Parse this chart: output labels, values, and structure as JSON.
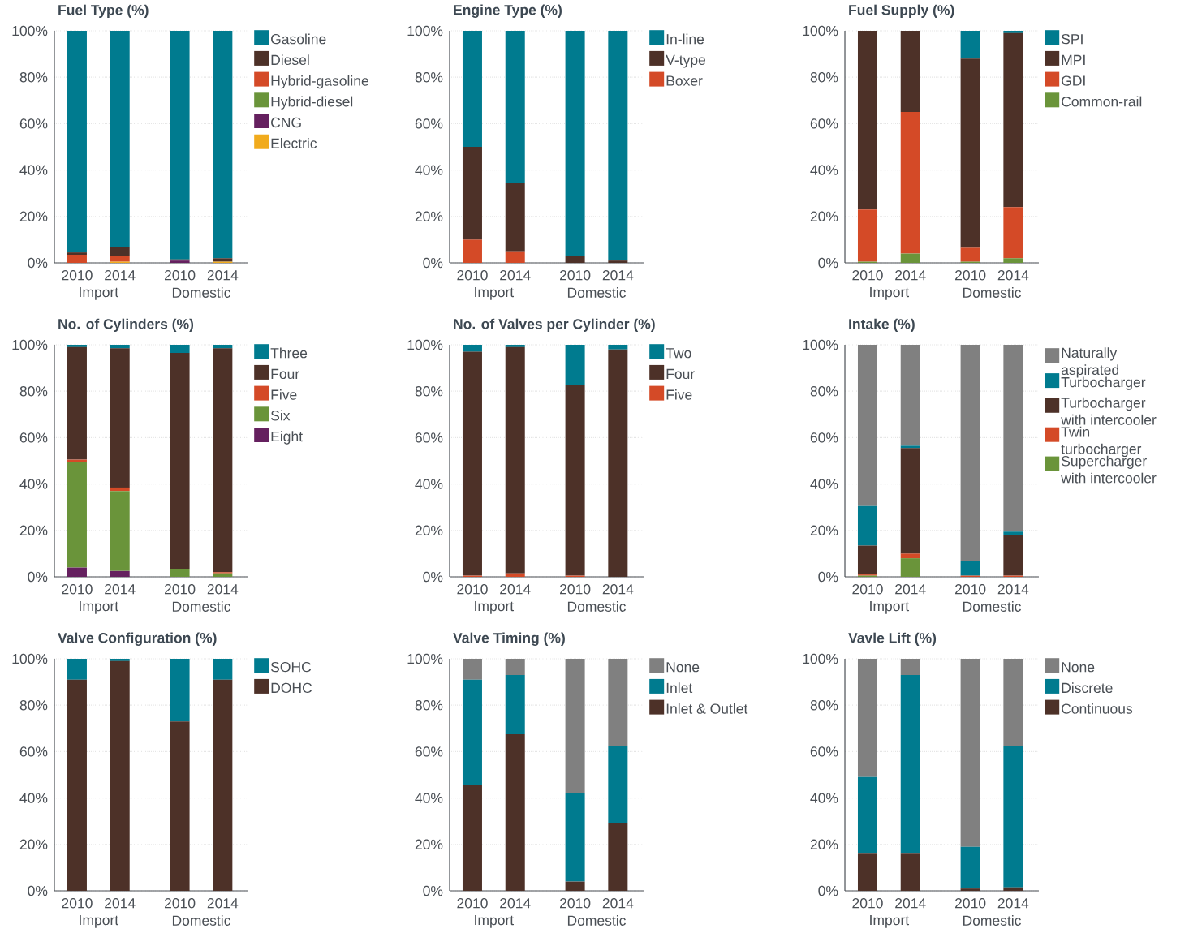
{
  "chart_data": [
    {
      "type": "bar",
      "stacked": true,
      "title": "Fuel Type (%)",
      "categories": [
        "2010",
        "2014",
        "2010",
        "2014"
      ],
      "annotations": [
        "Import",
        "Domestic"
      ],
      "ylim": [
        0,
        100
      ],
      "yticks": [
        {
          "value": 0,
          "label": "0%"
        },
        {
          "value": 20,
          "label": "20%"
        },
        {
          "value": 40,
          "label": "40%"
        },
        {
          "value": 60,
          "label": "60%"
        },
        {
          "value": 80,
          "label": "80%"
        },
        {
          "value": 100,
          "label": "100%"
        }
      ],
      "grid": "y",
      "legend": "right",
      "series": [
        {
          "name": "Electric",
          "color": "#f1ab1d",
          "values": [
            0,
            0.5,
            0,
            0.5
          ]
        },
        {
          "name": "CNG",
          "color": "#65205f",
          "values": [
            0,
            0,
            1,
            0
          ]
        },
        {
          "name": "Hybrid-diesel",
          "color": "#6a943a",
          "values": [
            0,
            0,
            0,
            0
          ]
        },
        {
          "name": "Hybrid-gasoline",
          "color": "#d44a27",
          "values": [
            3.5,
            2.5,
            0,
            0
          ]
        },
        {
          "name": "Diesel",
          "color": "#4d3128",
          "values": [
            1,
            4,
            0.5,
            1.5
          ]
        },
        {
          "name": "Gasoline",
          "color": "#007b8f",
          "values": [
            95.5,
            93,
            98.5,
            98
          ]
        }
      ]
    },
    {
      "type": "bar",
      "stacked": true,
      "title": "Engine Type (%)",
      "categories": [
        "2010",
        "2014",
        "2010",
        "2014"
      ],
      "annotations": [
        "Import",
        "Domestic"
      ],
      "ylim": [
        0,
        100
      ],
      "yticks": [
        {
          "value": 0,
          "label": "0%"
        },
        {
          "value": 20,
          "label": "20%"
        },
        {
          "value": 40,
          "label": "40%"
        },
        {
          "value": 60,
          "label": "60%"
        },
        {
          "value": 80,
          "label": "80%"
        },
        {
          "value": 100,
          "label": "100%"
        }
      ],
      "grid": "y",
      "legend": "right",
      "series": [
        {
          "name": "Boxer",
          "color": "#d44a27",
          "values": [
            10,
            5,
            0,
            0
          ]
        },
        {
          "name": "V-type",
          "color": "#4d3128",
          "values": [
            40,
            29.5,
            3,
            1
          ]
        },
        {
          "name": "In-line",
          "color": "#007b8f",
          "values": [
            50,
            65.5,
            97,
            99
          ]
        }
      ]
    },
    {
      "type": "bar",
      "stacked": true,
      "title": "Fuel Supply (%)",
      "categories": [
        "2010",
        "2014",
        "2010",
        "2014"
      ],
      "annotations": [
        "Import",
        "Domestic"
      ],
      "ylim": [
        0,
        100
      ],
      "yticks": [
        {
          "value": 0,
          "label": "0%"
        },
        {
          "value": 20,
          "label": "20%"
        },
        {
          "value": 40,
          "label": "40%"
        },
        {
          "value": 60,
          "label": "60%"
        },
        {
          "value": 80,
          "label": "80%"
        },
        {
          "value": 100,
          "label": "100%"
        }
      ],
      "grid": "y",
      "legend": "right",
      "series": [
        {
          "name": "Common-rail",
          "color": "#6a943a",
          "values": [
            0.5,
            4,
            0.5,
            2
          ]
        },
        {
          "name": "GDI",
          "color": "#d44a27",
          "values": [
            22.5,
            61,
            6,
            22
          ]
        },
        {
          "name": "MPI",
          "color": "#4d3128",
          "values": [
            77,
            35,
            81.5,
            75
          ]
        },
        {
          "name": "SPI",
          "color": "#007b8f",
          "values": [
            0,
            0,
            12,
            1
          ]
        }
      ]
    },
    {
      "type": "bar",
      "stacked": true,
      "title": "No. of Cylinders (%)",
      "categories": [
        "2010",
        "2014",
        "2010",
        "2014"
      ],
      "annotations": [
        "Import",
        "Domestic"
      ],
      "ylim": [
        0,
        100
      ],
      "yticks": [
        {
          "value": 0,
          "label": "0%"
        },
        {
          "value": 20,
          "label": "20%"
        },
        {
          "value": 40,
          "label": "40%"
        },
        {
          "value": 60,
          "label": "60%"
        },
        {
          "value": 80,
          "label": "80%"
        },
        {
          "value": 100,
          "label": "100%"
        }
      ],
      "grid": "y",
      "legend": "right",
      "series": [
        {
          "name": "Eight",
          "color": "#65205f",
          "values": [
            4,
            2.5,
            0,
            0
          ]
        },
        {
          "name": "Six",
          "color": "#6a943a",
          "values": [
            45.5,
            34.5,
            3.5,
            1.5
          ]
        },
        {
          "name": "Five",
          "color": "#d44a27",
          "values": [
            1,
            1.5,
            0,
            0.5
          ]
        },
        {
          "name": "Four",
          "color": "#4d3128",
          "values": [
            48.5,
            60,
            93,
            96.5
          ]
        },
        {
          "name": "Three",
          "color": "#007b8f",
          "values": [
            1,
            1.5,
            3.5,
            1.5
          ]
        }
      ]
    },
    {
      "type": "bar",
      "stacked": true,
      "title": "No. of Valves per Cylinder (%)",
      "categories": [
        "2010",
        "2014",
        "2010",
        "2014"
      ],
      "annotations": [
        "Import",
        "Domestic"
      ],
      "ylim": [
        0,
        100
      ],
      "yticks": [
        {
          "value": 0,
          "label": "0%"
        },
        {
          "value": 20,
          "label": "20%"
        },
        {
          "value": 40,
          "label": "40%"
        },
        {
          "value": 60,
          "label": "60%"
        },
        {
          "value": 80,
          "label": "80%"
        },
        {
          "value": 100,
          "label": "100%"
        }
      ],
      "grid": "y",
      "legend": "right",
      "series": [
        {
          "name": "Five",
          "color": "#d44a27",
          "values": [
            0.5,
            1.5,
            0.5,
            0
          ]
        },
        {
          "name": "Four",
          "color": "#4d3128",
          "values": [
            96.5,
            97.5,
            82,
            98
          ]
        },
        {
          "name": "Two",
          "color": "#007b8f",
          "values": [
            3,
            1,
            17.5,
            2
          ]
        }
      ]
    },
    {
      "type": "bar",
      "stacked": true,
      "title": "Intake (%)",
      "categories": [
        "2010",
        "2014",
        "2010",
        "2014"
      ],
      "annotations": [
        "Import",
        "Domestic"
      ],
      "ylim": [
        0,
        100
      ],
      "yticks": [
        {
          "value": 0,
          "label": "0%"
        },
        {
          "value": 20,
          "label": "20%"
        },
        {
          "value": 40,
          "label": "40%"
        },
        {
          "value": 60,
          "label": "60%"
        },
        {
          "value": 80,
          "label": "80%"
        },
        {
          "value": 100,
          "label": "100%"
        }
      ],
      "grid": "y",
      "legend": "right",
      "series": [
        {
          "name": "Supercharger with intercooler",
          "color": "#6a943a",
          "values": [
            0.5,
            8,
            0,
            0
          ]
        },
        {
          "name": "Twin turbocharger",
          "color": "#d44a27",
          "values": [
            0.5,
            2,
            0.5,
            0.5
          ]
        },
        {
          "name": "Turbocharger with intercooler",
          "color": "#4d3128",
          "values": [
            12.5,
            45.5,
            0,
            17.5
          ]
        },
        {
          "name": "Turbocharger",
          "color": "#007b8f",
          "values": [
            17,
            1,
            6.5,
            1.5
          ]
        },
        {
          "name": "Naturally aspirated",
          "color": "#808080",
          "values": [
            69.5,
            43.5,
            93,
            80.5
          ]
        }
      ]
    },
    {
      "type": "bar",
      "stacked": true,
      "title": "Valve Configuration (%)",
      "categories": [
        "2010",
        "2014",
        "2010",
        "2014"
      ],
      "annotations": [
        "Import",
        "Domestic"
      ],
      "ylim": [
        0,
        100
      ],
      "yticks": [
        {
          "value": 0,
          "label": "0%"
        },
        {
          "value": 20,
          "label": "20%"
        },
        {
          "value": 40,
          "label": "40%"
        },
        {
          "value": 60,
          "label": "60%"
        },
        {
          "value": 80,
          "label": "80%"
        },
        {
          "value": 100,
          "label": "100%"
        }
      ],
      "grid": "y",
      "legend": "right",
      "series": [
        {
          "name": "DOHC",
          "color": "#4d3128",
          "values": [
            91,
            99,
            73,
            91
          ]
        },
        {
          "name": "SOHC",
          "color": "#007b8f",
          "values": [
            9,
            1,
            27,
            9
          ]
        }
      ]
    },
    {
      "type": "bar",
      "stacked": true,
      "title": "Valve Timing (%)",
      "categories": [
        "2010",
        "2014",
        "2010",
        "2014"
      ],
      "annotations": [
        "Import",
        "Domestic"
      ],
      "ylim": [
        0,
        100
      ],
      "yticks": [
        {
          "value": 0,
          "label": "0%"
        },
        {
          "value": 20,
          "label": "20%"
        },
        {
          "value": 40,
          "label": "40%"
        },
        {
          "value": 60,
          "label": "60%"
        },
        {
          "value": 80,
          "label": "80%"
        },
        {
          "value": 100,
          "label": "100%"
        }
      ],
      "grid": "y",
      "legend": "right",
      "series": [
        {
          "name": "Inlet & Outlet",
          "color": "#4d3128",
          "values": [
            45.5,
            67.5,
            4,
            29
          ]
        },
        {
          "name": "Inlet",
          "color": "#007b8f",
          "values": [
            45.5,
            25.5,
            38,
            33.5
          ]
        },
        {
          "name": "None",
          "color": "#808080",
          "values": [
            9,
            7,
            58,
            37.5
          ]
        }
      ]
    },
    {
      "type": "bar",
      "stacked": true,
      "title": "Vavle Lift (%)",
      "categories": [
        "2010",
        "2014",
        "2010",
        "2014"
      ],
      "annotations": [
        "Import",
        "Domestic"
      ],
      "ylim": [
        0,
        100
      ],
      "yticks": [
        {
          "value": 0,
          "label": "0%"
        },
        {
          "value": 20,
          "label": "20%"
        },
        {
          "value": 40,
          "label": "40%"
        },
        {
          "value": 60,
          "label": "60%"
        },
        {
          "value": 80,
          "label": "80%"
        },
        {
          "value": 100,
          "label": "100%"
        }
      ],
      "grid": "y",
      "legend": "right",
      "series": [
        {
          "name": "Continuous",
          "color": "#4d3128",
          "values": [
            16,
            16,
            1,
            1.5
          ]
        },
        {
          "name": "Discrete",
          "color": "#007b8f",
          "values": [
            33,
            77,
            18,
            61
          ]
        },
        {
          "name": "None",
          "color": "#808080",
          "values": [
            51,
            7,
            81,
            37.5
          ]
        }
      ]
    }
  ]
}
